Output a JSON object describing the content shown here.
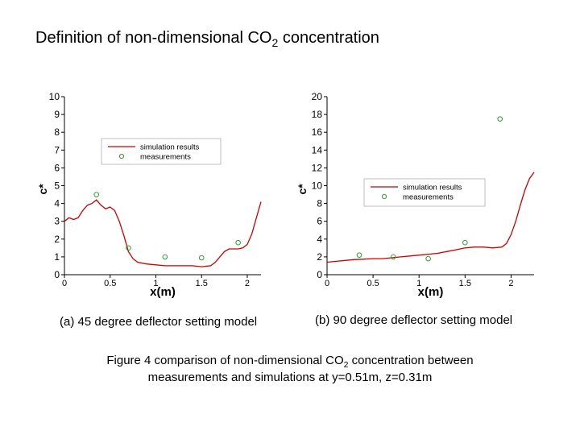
{
  "title": {
    "text": "Definition of non-dimensional CO",
    "sub": "2",
    "tail": " concentration"
  },
  "captions": {
    "a": "(a) 45 degree deflector setting model",
    "b": "(b) 90 degree deflector setting model"
  },
  "figure_caption": {
    "line1_pre": "Figure 4 comparison of non-dimensional CO",
    "line1_sub": "2",
    "line1_post": " concentration between",
    "line2": "measurements and simulations at y=0.51m, z=0.31m"
  },
  "colors": {
    "simulation": "#cc0000",
    "measurement": "#2e9e2e",
    "axis": "#000000"
  },
  "chart_data": [
    {
      "type": "line",
      "xlabel": "x(m)",
      "ylabel": "c*",
      "xlim": [
        0,
        2.15
      ],
      "ylim": [
        0,
        10
      ],
      "xticks": [
        0,
        0.5,
        1,
        1.5,
        2
      ],
      "xtick_labels": [
        "0",
        "0.5",
        "1",
        "1.5",
        "2"
      ],
      "yticks": [
        0,
        1,
        2,
        3,
        4,
        5,
        6,
        7,
        8,
        9,
        10
      ],
      "legend_position": "upper-center",
      "grid": false,
      "series": [
        {
          "name": "simulation results",
          "kind": "line",
          "x": [
            0,
            0.05,
            0.1,
            0.15,
            0.2,
            0.25,
            0.3,
            0.35,
            0.4,
            0.45,
            0.5,
            0.55,
            0.6,
            0.65,
            0.7,
            0.75,
            0.8,
            0.9,
            1.0,
            1.1,
            1.2,
            1.3,
            1.4,
            1.5,
            1.6,
            1.65,
            1.7,
            1.75,
            1.8,
            1.85,
            1.9,
            1.95,
            2.0,
            2.05,
            2.1,
            2.15
          ],
          "y": [
            3.0,
            3.2,
            3.1,
            3.2,
            3.6,
            3.9,
            4.0,
            4.2,
            3.9,
            3.7,
            3.8,
            3.6,
            3.0,
            2.2,
            1.3,
            0.9,
            0.7,
            0.6,
            0.55,
            0.5,
            0.5,
            0.5,
            0.5,
            0.45,
            0.5,
            0.7,
            1.0,
            1.3,
            1.45,
            1.45,
            1.45,
            1.5,
            1.7,
            2.3,
            3.2,
            4.1
          ]
        },
        {
          "name": "measurements",
          "kind": "scatter",
          "x": [
            0.35,
            0.7,
            1.1,
            1.5,
            1.9
          ],
          "y": [
            4.5,
            1.5,
            1.0,
            0.95,
            1.8
          ]
        }
      ]
    },
    {
      "type": "line",
      "xlabel": "x(m)",
      "ylabel": "c*",
      "xlim": [
        0,
        2.25
      ],
      "ylim": [
        0,
        20
      ],
      "xticks": [
        0,
        0.5,
        1,
        1.5,
        2
      ],
      "xtick_labels": [
        "0",
        "0.5",
        "1",
        "1.5",
        "2"
      ],
      "yticks": [
        0,
        2,
        4,
        6,
        8,
        10,
        12,
        14,
        16,
        18,
        20
      ],
      "legend_position": "center",
      "grid": false,
      "series": [
        {
          "name": "simulation results",
          "kind": "line",
          "x": [
            0,
            0.1,
            0.2,
            0.3,
            0.4,
            0.5,
            0.6,
            0.7,
            0.8,
            0.9,
            1.0,
            1.1,
            1.2,
            1.3,
            1.4,
            1.5,
            1.6,
            1.7,
            1.8,
            1.9,
            1.95,
            2.0,
            2.05,
            2.1,
            2.15,
            2.2,
            2.25
          ],
          "y": [
            1.4,
            1.5,
            1.6,
            1.7,
            1.75,
            1.8,
            1.8,
            1.9,
            2.0,
            2.1,
            2.2,
            2.3,
            2.4,
            2.6,
            2.8,
            3.0,
            3.1,
            3.1,
            3.0,
            3.1,
            3.5,
            4.5,
            6.0,
            7.8,
            9.5,
            10.8,
            11.5
          ]
        },
        {
          "name": "measurements",
          "kind": "scatter",
          "x": [
            0.35,
            0.55,
            0.72,
            1.1,
            1.5,
            1.88
          ],
          "y": [
            2.2,
            8.3,
            2.0,
            1.8,
            3.6,
            17.5
          ]
        }
      ]
    }
  ]
}
